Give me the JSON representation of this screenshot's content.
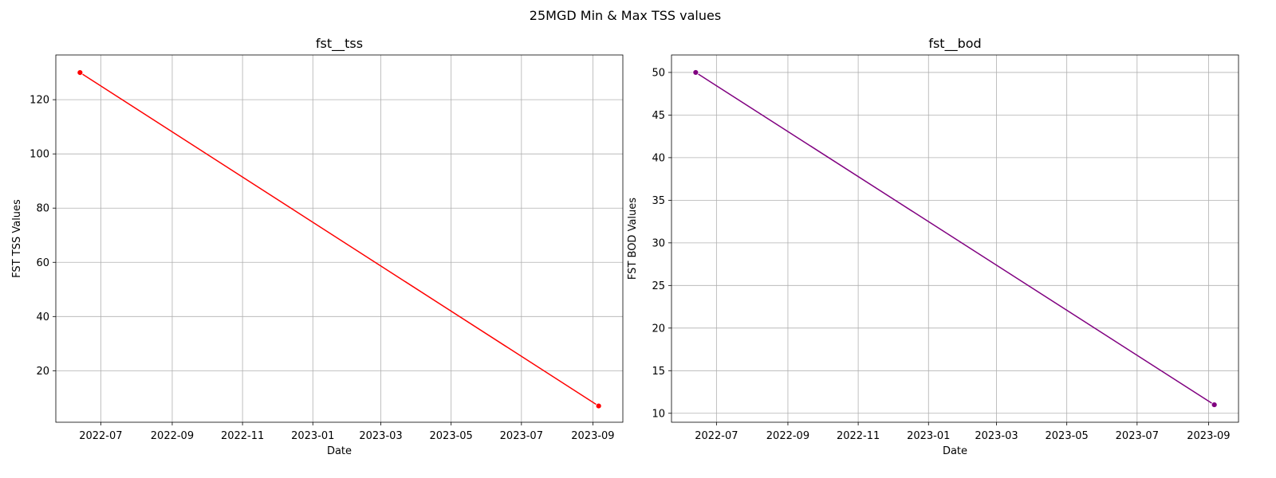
{
  "figure": {
    "title": "25MGD Min & Max TSS values"
  },
  "chart_data": [
    {
      "type": "line",
      "title": "fst__tss",
      "xlabel": "Date",
      "ylabel": "FST TSS Values",
      "x_ticks": [
        "2022-07",
        "2022-09",
        "2022-11",
        "2023-01",
        "2023-03",
        "2023-05",
        "2023-07",
        "2023-09"
      ],
      "y_ticks": [
        20,
        40,
        60,
        80,
        100,
        120
      ],
      "xlim": [
        "2022-05-23",
        "2023-09-27"
      ],
      "ylim": [
        1,
        136.5
      ],
      "grid": true,
      "marker": "circle",
      "color": "#ff0000",
      "series": [
        {
          "x": [
            "2022-06-13",
            "2023-09-06"
          ],
          "values": [
            130,
            7
          ]
        }
      ]
    },
    {
      "type": "line",
      "title": "fst__bod",
      "xlabel": "Date",
      "ylabel": "FST BOD Values",
      "x_ticks": [
        "2022-07",
        "2022-09",
        "2022-11",
        "2023-01",
        "2023-03",
        "2023-05",
        "2023-07",
        "2023-09"
      ],
      "y_ticks": [
        10,
        15,
        20,
        25,
        30,
        35,
        40,
        45,
        50
      ],
      "xlim": [
        "2022-05-23",
        "2023-09-27"
      ],
      "ylim": [
        8.95,
        52.05
      ],
      "grid": true,
      "marker": "circle",
      "color": "#800080",
      "series": [
        {
          "x": [
            "2022-06-13",
            "2023-09-06"
          ],
          "values": [
            50,
            11
          ]
        }
      ]
    }
  ]
}
